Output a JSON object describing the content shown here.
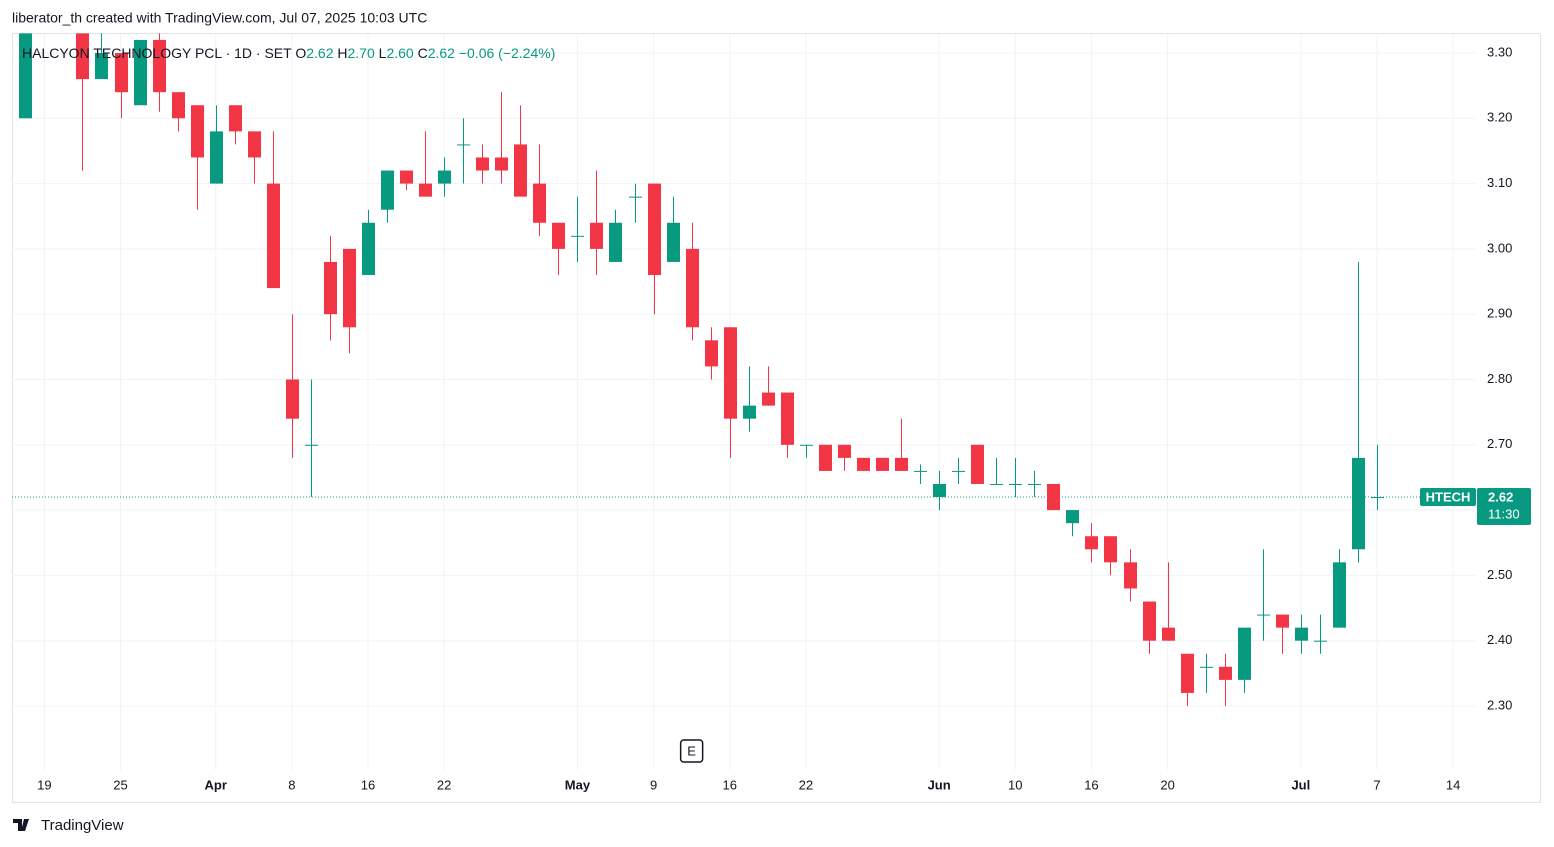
{
  "header": "liberator_th created with TradingView.com, Jul 07, 2025 10:03 UTC",
  "footer": "TradingView",
  "chart_data": {
    "type": "candlestick",
    "legend": {
      "name": "HALCYON TECHNOLOGY PCL · 1D · SET",
      "fields": [
        {
          "label": "O",
          "value": "2.62"
        },
        {
          "label": "H",
          "value": "2.70"
        },
        {
          "label": "L",
          "value": "2.60"
        },
        {
          "label": "C",
          "value": "2.62"
        }
      ],
      "change": "−0.06 (−2.24%)"
    },
    "price_tag": {
      "symbol": "HTECH",
      "price": "2.62",
      "countdown": "11:30"
    },
    "event_marker": "E",
    "up_color": "#089981",
    "down_color": "#f23645",
    "x": [
      0,
      3,
      4,
      5,
      6,
      7,
      8,
      9,
      10,
      11,
      12,
      13,
      14,
      15,
      16,
      17,
      18,
      19,
      20,
      21,
      22,
      23,
      24,
      25,
      26,
      27,
      28,
      29,
      30,
      31,
      32,
      33,
      34,
      35,
      36,
      37,
      38,
      39,
      40,
      41,
      42,
      43,
      44,
      45,
      46,
      47,
      48,
      49,
      50,
      51,
      52,
      53,
      54,
      55,
      56,
      57,
      58,
      59,
      60,
      61,
      62,
      63,
      64,
      65,
      66,
      67,
      68,
      69,
      70,
      71
    ],
    "open": [
      3.2,
      3.33,
      3.26,
      3.3,
      3.22,
      3.32,
      3.24,
      3.22,
      3.1,
      3.22,
      3.18,
      3.1,
      2.8,
      2.7,
      2.98,
      3.0,
      2.96,
      3.06,
      3.12,
      3.1,
      3.1,
      3.16,
      3.14,
      3.14,
      3.16,
      3.1,
      3.04,
      3.02,
      3.04,
      2.98,
      3.08,
      3.1,
      2.98,
      3.0,
      2.86,
      2.88,
      2.74,
      2.78,
      2.78,
      2.7,
      2.7,
      2.7,
      2.68,
      2.68,
      2.68,
      2.66,
      2.62,
      2.66,
      2.7,
      2.64,
      2.64,
      2.64,
      2.64,
      2.58,
      2.56,
      2.56,
      2.52,
      2.46,
      2.42,
      2.38,
      2.36,
      2.36,
      2.34,
      2.44,
      2.44,
      2.4,
      2.4,
      2.42,
      2.54,
      2.62
    ],
    "high": [
      3.33,
      3.33,
      3.33,
      3.3,
      3.32,
      3.33,
      3.24,
      3.22,
      3.22,
      3.22,
      3.18,
      3.18,
      2.9,
      2.8,
      3.02,
      3.0,
      3.06,
      3.12,
      3.12,
      3.18,
      3.14,
      3.2,
      3.16,
      3.24,
      3.22,
      3.16,
      3.04,
      3.08,
      3.12,
      3.06,
      3.1,
      3.1,
      3.08,
      3.04,
      2.88,
      2.88,
      2.82,
      2.82,
      2.78,
      2.7,
      2.7,
      2.7,
      2.68,
      2.68,
      2.74,
      2.67,
      2.66,
      2.68,
      2.7,
      2.68,
      2.68,
      2.66,
      2.64,
      2.6,
      2.58,
      2.56,
      2.54,
      2.46,
      2.52,
      2.38,
      2.38,
      2.38,
      2.42,
      2.54,
      2.44,
      2.44,
      2.44,
      2.54,
      2.98,
      2.7
    ],
    "low": [
      3.2,
      3.12,
      3.26,
      3.2,
      3.22,
      3.21,
      3.18,
      3.06,
      3.1,
      3.16,
      3.1,
      2.94,
      2.68,
      2.62,
      2.86,
      2.84,
      2.96,
      3.04,
      3.09,
      3.08,
      3.08,
      3.1,
      3.1,
      3.1,
      3.08,
      3.02,
      2.96,
      2.98,
      2.96,
      2.98,
      3.04,
      2.9,
      2.98,
      2.86,
      2.8,
      2.68,
      2.72,
      2.76,
      2.68,
      2.68,
      2.66,
      2.66,
      2.66,
      2.66,
      2.66,
      2.64,
      2.6,
      2.64,
      2.64,
      2.64,
      2.62,
      2.62,
      2.6,
      2.56,
      2.52,
      2.5,
      2.46,
      2.38,
      2.4,
      2.3,
      2.32,
      2.3,
      2.32,
      2.4,
      2.38,
      2.38,
      2.38,
      2.42,
      2.52,
      2.6
    ],
    "close": [
      3.33,
      3.26,
      3.3,
      3.24,
      3.32,
      3.24,
      3.2,
      3.14,
      3.18,
      3.18,
      3.14,
      2.94,
      2.74,
      2.7,
      2.9,
      2.88,
      3.04,
      3.12,
      3.1,
      3.08,
      3.12,
      3.16,
      3.12,
      3.12,
      3.08,
      3.04,
      3.0,
      3.02,
      3.0,
      3.04,
      3.08,
      2.96,
      3.04,
      2.88,
      2.82,
      2.74,
      2.76,
      2.76,
      2.7,
      2.7,
      2.66,
      2.68,
      2.66,
      2.66,
      2.66,
      2.66,
      2.64,
      2.66,
      2.64,
      2.64,
      2.64,
      2.64,
      2.6,
      2.6,
      2.54,
      2.52,
      2.48,
      2.4,
      2.4,
      2.32,
      2.36,
      2.34,
      2.42,
      2.44,
      2.42,
      2.42,
      2.4,
      2.52,
      2.68,
      2.62
    ],
    "xlim": [
      -0.7,
      76.2
    ],
    "ylim": [
      2.2,
      3.33
    ],
    "yticks": [
      {
        "value": 2.3,
        "label": "2.30"
      },
      {
        "value": 2.4,
        "label": "2.40"
      },
      {
        "value": 2.5,
        "label": "2.50"
      },
      {
        "value": 2.6,
        "label": "2.60"
      },
      {
        "value": 2.7,
        "label": "2.70"
      },
      {
        "value": 2.8,
        "label": "2.80"
      },
      {
        "value": 2.9,
        "label": "2.90"
      },
      {
        "value": 3,
        "label": "3.00"
      },
      {
        "value": 3.1,
        "label": "3.10"
      },
      {
        "value": 3.2,
        "label": "3.20"
      },
      {
        "value": 3.3,
        "label": "3.30"
      }
    ],
    "xticks": [
      {
        "value": 1,
        "label": "19"
      },
      {
        "value": 5,
        "label": "25"
      },
      {
        "value": 10,
        "label": "Apr"
      },
      {
        "value": 14,
        "label": "8"
      },
      {
        "value": 18,
        "label": "16"
      },
      {
        "value": 22,
        "label": "22"
      },
      {
        "value": 29,
        "label": "May"
      },
      {
        "value": 33,
        "label": "9"
      },
      {
        "value": 37,
        "label": "16"
      },
      {
        "value": 41,
        "label": "22"
      },
      {
        "value": 48,
        "label": "Jun"
      },
      {
        "value": 52,
        "label": "10"
      },
      {
        "value": 56,
        "label": "16"
      },
      {
        "value": 60,
        "label": "20"
      },
      {
        "value": 67,
        "label": "Jul"
      },
      {
        "value": 71,
        "label": "7"
      },
      {
        "value": 75,
        "label": "14"
      }
    ],
    "event_x": 35,
    "grid": true
  }
}
